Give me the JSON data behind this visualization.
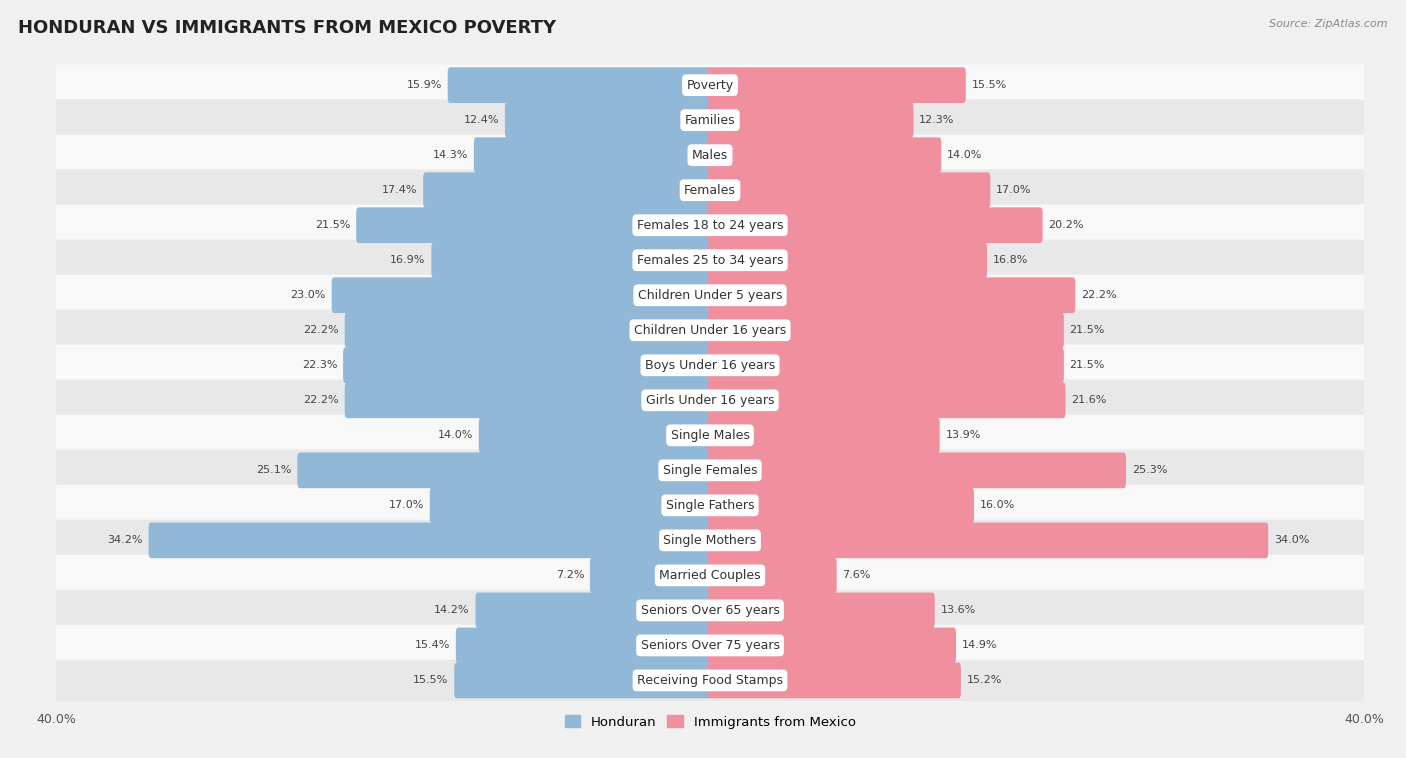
{
  "title": "HONDURAN VS IMMIGRANTS FROM MEXICO POVERTY",
  "source": "Source: ZipAtlas.com",
  "categories": [
    "Poverty",
    "Families",
    "Males",
    "Females",
    "Females 18 to 24 years",
    "Females 25 to 34 years",
    "Children Under 5 years",
    "Children Under 16 years",
    "Boys Under 16 years",
    "Girls Under 16 years",
    "Single Males",
    "Single Females",
    "Single Fathers",
    "Single Mothers",
    "Married Couples",
    "Seniors Over 65 years",
    "Seniors Over 75 years",
    "Receiving Food Stamps"
  ],
  "honduran": [
    15.9,
    12.4,
    14.3,
    17.4,
    21.5,
    16.9,
    23.0,
    22.2,
    22.3,
    22.2,
    14.0,
    25.1,
    17.0,
    34.2,
    7.2,
    14.2,
    15.4,
    15.5
  ],
  "mexico": [
    15.5,
    12.3,
    14.0,
    17.0,
    20.2,
    16.8,
    22.2,
    21.5,
    21.5,
    21.6,
    13.9,
    25.3,
    16.0,
    34.0,
    7.6,
    13.6,
    14.9,
    15.2
  ],
  "honduran_color": "#92b8d8",
  "mexico_color": "#f0909f",
  "background_color": "#f0f0f0",
  "row_color_even": "#e8e8e8",
  "row_color_odd": "#f8f8f8",
  "xlim": 40.0,
  "bar_height": 0.72,
  "category_fontsize": 9.0,
  "title_fontsize": 13,
  "value_fontsize": 8.0,
  "legend_fontsize": 9.5
}
